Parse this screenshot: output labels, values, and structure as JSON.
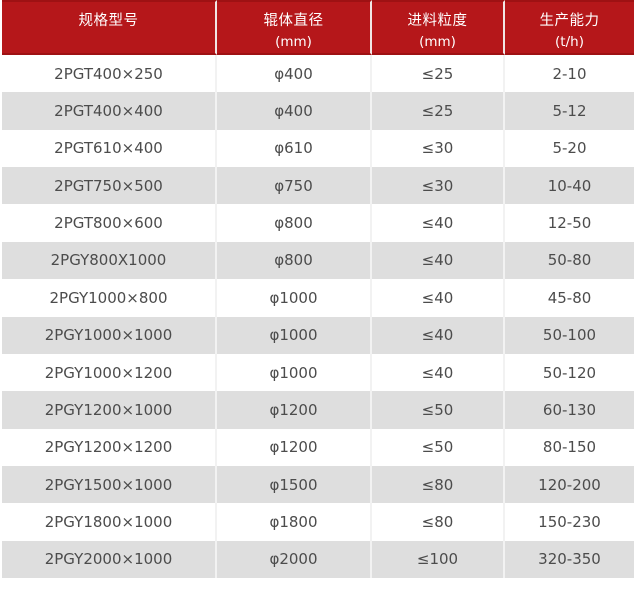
{
  "chart_data": {
    "type": "table",
    "columns": [
      {
        "title": "规格型号",
        "unit": ""
      },
      {
        "title": "辊体直径",
        "unit": "(mm)"
      },
      {
        "title": "进料粒度",
        "unit": "(mm)"
      },
      {
        "title": "生产能力",
        "unit": "(t/h)"
      }
    ],
    "rows": [
      [
        "2PGT400×250",
        "φ400",
        "≤25",
        "2-10"
      ],
      [
        "2PGT400×400",
        "φ400",
        "≤25",
        "5-12"
      ],
      [
        "2PGT610×400",
        "φ610",
        "≤30",
        "5-20"
      ],
      [
        "2PGT750×500",
        "φ750",
        "≤30",
        "10-40"
      ],
      [
        "2PGT800×600",
        "φ800",
        "≤40",
        "12-50"
      ],
      [
        "2PGY800X1000",
        "φ800",
        "≤40",
        "50-80"
      ],
      [
        "2PGY1000×800",
        "φ1000",
        "≤40",
        "45-80"
      ],
      [
        "2PGY1000×1000",
        "φ1000",
        "≤40",
        "50-100"
      ],
      [
        "2PGY1000×1200",
        "φ1000",
        "≤40",
        "50-120"
      ],
      [
        "2PGY1200×1000",
        "φ1200",
        "≤50",
        "60-130"
      ],
      [
        "2PGY1200×1200",
        "φ1200",
        "≤50",
        "80-150"
      ],
      [
        "2PGY1500×1000",
        "φ1500",
        "≤80",
        "120-200"
      ],
      [
        "2PGY1800×1000",
        "φ1800",
        "≤80",
        "150-230"
      ],
      [
        "2PGY2000×1000",
        "φ2000",
        "≤100",
        "320-350"
      ]
    ]
  },
  "colors": {
    "header_bg": "#b5171a",
    "header_border": "#9e1113",
    "header_text": "#ffffff",
    "row_bg": "#ffffff",
    "row_alt_bg": "#dedede",
    "body_text": "#4c4c4c",
    "column_divider_header": "#f1e6e6",
    "column_divider_body": "#f2f2f2"
  }
}
